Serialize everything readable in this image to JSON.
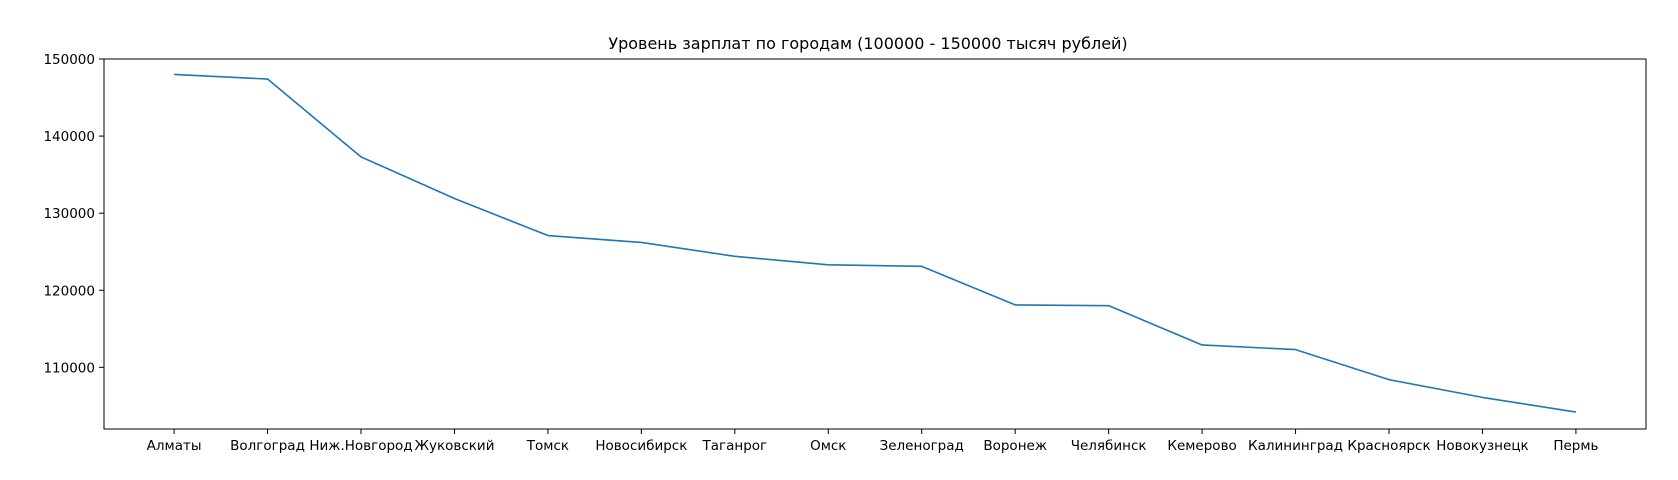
{
  "chart_data": {
    "type": "line",
    "title": "Уровень зарплат по городам (100000 - 150000 тысяч рублей)",
    "xlabel": "",
    "ylabel": "",
    "categories": [
      "Алматы",
      "Волгоград",
      "Ниж.Новгород",
      "Жуковский",
      "Томск",
      "Новосибирск",
      "Таганрог",
      "Омск",
      "Зеленоград",
      "Воронеж",
      "Челябинск",
      "Кемерово",
      "Калининград",
      "Красноярск",
      "Новокузнецк",
      "Пермь"
    ],
    "series": [
      {
        "values": [
          148000,
          147400,
          137300,
          131900,
          127100,
          126200,
          124400,
          123300,
          123100,
          118100,
          118000,
          112900,
          112300,
          108400,
          106100,
          104200
        ],
        "color": "#1f77b4"
      }
    ],
    "yticks": [
      110000,
      120000,
      130000,
      140000,
      150000
    ],
    "ylim": [
      102000,
      150000
    ],
    "grid": false,
    "legend": "none"
  }
}
